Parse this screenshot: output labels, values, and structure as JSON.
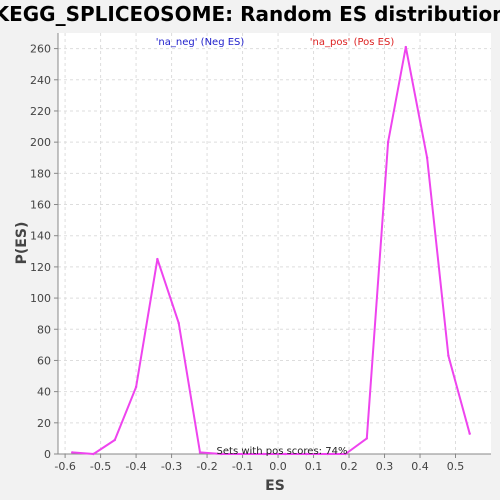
{
  "chart_data": {
    "type": "line",
    "title": "KEGG_SPLICEOSOME: Random ES distribution",
    "xlabel": "ES",
    "ylabel": "P(ES)",
    "xlim": [
      -0.62,
      0.6
    ],
    "ylim": [
      0,
      270
    ],
    "x_ticks": [
      "-0.6",
      "-0.5",
      "-0.4",
      "-0.3",
      "-0.2",
      "-0.1",
      "0.0",
      "0.1",
      "0.2",
      "0.3",
      "0.4",
      "0.5"
    ],
    "x_tick_values": [
      -0.6,
      -0.5,
      -0.4,
      -0.3,
      -0.2,
      -0.1,
      0.0,
      0.1,
      0.2,
      0.3,
      0.4,
      0.5
    ],
    "y_ticks": [
      "0",
      "20",
      "40",
      "60",
      "80",
      "100",
      "120",
      "140",
      "160",
      "180",
      "200",
      "220",
      "240",
      "260"
    ],
    "y_tick_values": [
      0,
      20,
      40,
      60,
      80,
      100,
      120,
      140,
      160,
      180,
      200,
      220,
      240,
      260
    ],
    "grid": true,
    "legend": [
      {
        "label": "'na_neg' (Neg ES)",
        "color": "#2222cc"
      },
      {
        "label": "'na_pos' (Pos ES)",
        "color": "#dd2222"
      }
    ],
    "series": [
      {
        "color": "#ee44ee",
        "x": [
          -0.58,
          -0.52,
          -0.46,
          -0.4,
          -0.34,
          -0.28,
          -0.22,
          -0.16,
          -0.1,
          -0.04,
          0.02,
          0.08,
          0.14,
          0.19,
          0.25,
          0.31,
          0.36,
          0.42,
          0.48,
          0.54
        ],
        "y": [
          1,
          0,
          9,
          43,
          125,
          84,
          1,
          0,
          0,
          0,
          0,
          0,
          0,
          0,
          10,
          200,
          261,
          190,
          63,
          13
        ]
      }
    ],
    "annotation": "Sets with pos scores: 74%"
  },
  "colors": {
    "background": "#f2f2f2",
    "plot_background": "#ffffff",
    "grid": "#dddddd"
  }
}
